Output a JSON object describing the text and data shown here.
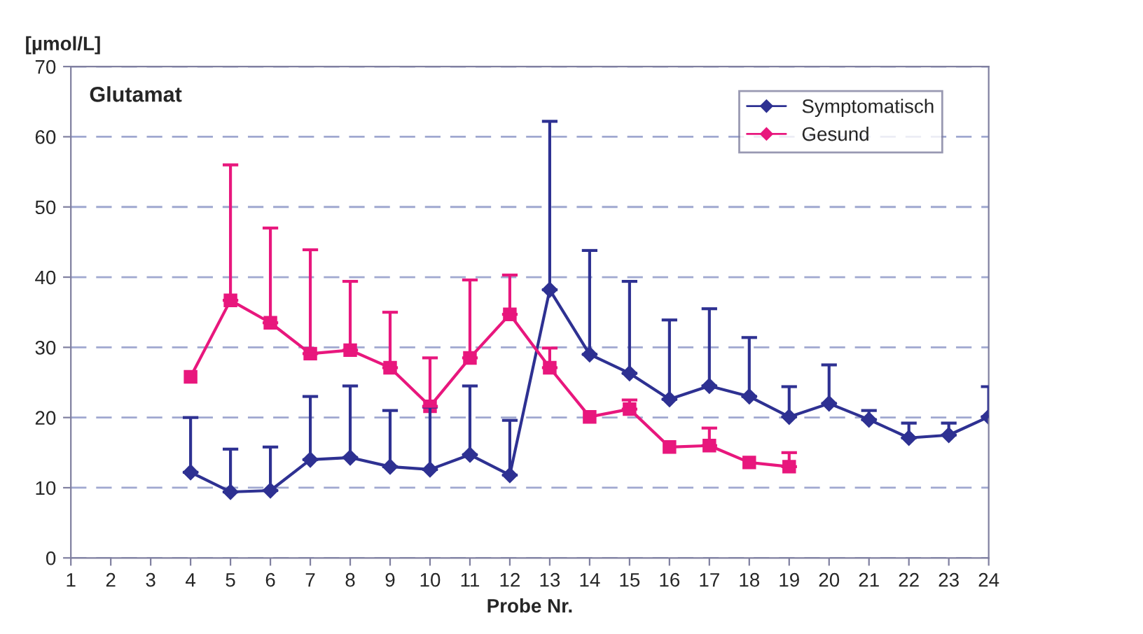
{
  "chart_data": {
    "type": "line",
    "title": "Glutamat",
    "xlabel": "Probe Nr.",
    "ylabel": "[µmol/L]",
    "xlim": [
      1,
      24
    ],
    "xticks": [
      1,
      2,
      3,
      4,
      5,
      6,
      7,
      8,
      9,
      10,
      11,
      12,
      13,
      14,
      15,
      16,
      17,
      18,
      19,
      20,
      21,
      22,
      23,
      24
    ],
    "ylim": [
      0,
      70
    ],
    "yticks": [
      0,
      10,
      20,
      30,
      40,
      50,
      60,
      70
    ],
    "grid": "y",
    "legend": "top right",
    "series": [
      {
        "name": "Symptomatisch",
        "color": "#2e3192",
        "marker": "diamond",
        "x": [
          4,
          5,
          6,
          7,
          8,
          9,
          10,
          11,
          12,
          13,
          14,
          15,
          16,
          17,
          18,
          19,
          20,
          21,
          22,
          23,
          24
        ],
        "values": [
          12.2,
          9.4,
          9.6,
          14,
          14.3,
          13,
          12.6,
          14.7,
          11.8,
          38.2,
          29,
          26.3,
          22.6,
          24.5,
          23,
          20.1,
          22,
          19.7,
          17.1,
          17.5,
          20.1
        ],
        "errors": [
          [
            12.2,
            20
          ],
          [
            9.4,
            15.5
          ],
          [
            9.6,
            15.8
          ],
          [
            14,
            23
          ],
          [
            14.3,
            24.5
          ],
          [
            13,
            21
          ],
          [
            12.6,
            21.5
          ],
          [
            14.7,
            24.5
          ],
          [
            11.8,
            19.6
          ],
          [
            38.2,
            62.2
          ],
          [
            29,
            43.8
          ],
          [
            26.3,
            39.4
          ],
          [
            22.6,
            33.9
          ],
          [
            24.5,
            35.5
          ],
          [
            23,
            31.4
          ],
          [
            20.1,
            24.4
          ],
          [
            22,
            27.5
          ],
          [
            19.7,
            21
          ],
          [
            17.1,
            19.2
          ],
          [
            17.5,
            19.2
          ],
          [
            20.1,
            24.4
          ]
        ]
      },
      {
        "name": "Gesund",
        "color": "#e8177d",
        "marker": "square",
        "x": [
          4,
          5,
          6,
          7,
          8,
          9,
          10,
          11,
          12,
          13,
          14,
          15,
          16,
          17,
          18,
          19
        ],
        "values": [
          25.8,
          36.7,
          33.5,
          29.1,
          29.6,
          27.1,
          21.6,
          28.5,
          34.7,
          27.1,
          20.1,
          21.2,
          15.8,
          16,
          13.6,
          13
        ],
        "errors": [
          null,
          [
            36.7,
            56
          ],
          [
            33.5,
            47
          ],
          [
            29.1,
            43.9
          ],
          [
            29.6,
            39.4
          ],
          [
            27.1,
            35
          ],
          [
            21.6,
            28.5
          ],
          [
            28.5,
            39.6
          ],
          [
            34.7,
            40.3
          ],
          [
            27.1,
            29.9
          ],
          null,
          [
            21.2,
            22.5
          ],
          null,
          [
            16,
            18.5
          ],
          null,
          [
            13,
            15
          ]
        ]
      }
    ]
  }
}
